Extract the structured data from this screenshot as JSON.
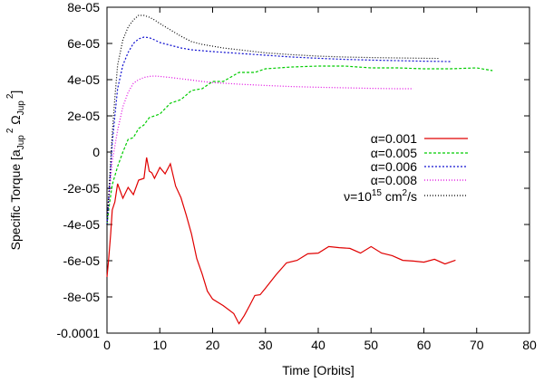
{
  "chart_data": {
    "type": "line",
    "title": "",
    "xlabel": "Time [Orbits]",
    "ylabel_parts": {
      "a": "Specific Torque [a",
      "sub1": "Jup",
      "sup1": "2",
      "omega": " Ω",
      "sub2": "Jup",
      "sup2": "2",
      "close": "]"
    },
    "xlim": [
      0,
      80
    ],
    "ylim": [
      -0.0001,
      8e-05
    ],
    "x_ticks": [
      0,
      10,
      20,
      30,
      40,
      50,
      60,
      70,
      80
    ],
    "x_tick_labels": [
      "0",
      "10",
      "20",
      "30",
      "40",
      "50",
      "60",
      "70",
      "80"
    ],
    "y_ticks": [
      -0.0001,
      -8e-05,
      -6e-05,
      -4e-05,
      -2e-05,
      0,
      2e-05,
      4e-05,
      6e-05,
      8e-05
    ],
    "y_tick_labels": [
      "-0.0001",
      "-8e-05",
      "-6e-05",
      "-4e-05",
      "-2e-05",
      "0",
      "2e-05",
      "4e-05",
      "6e-05",
      "8e-05"
    ],
    "legend_position": "right",
    "series": [
      {
        "name": "α=0.001",
        "label_main": "α=0.001",
        "label_sup": "",
        "label_tail": "",
        "color": "#e00000",
        "dash": "",
        "x": [
          0,
          0.3,
          0.7,
          1,
          1.5,
          2,
          3,
          4,
          5,
          6,
          7,
          7.5,
          8,
          8.5,
          9,
          10,
          11,
          12,
          13,
          14,
          15,
          16,
          17,
          18,
          19,
          20,
          22,
          24,
          25,
          26,
          27,
          28,
          29,
          30,
          32,
          34,
          36,
          38,
          40,
          42,
          44,
          46,
          48,
          50,
          52,
          54,
          56,
          58,
          60,
          62,
          64,
          66
        ],
        "y": [
          -6.9e-05,
          -6e-05,
          -4.5e-05,
          -3.2e-05,
          -2.5e-05,
          -2e-05,
          -2.3e-05,
          -2.2e-05,
          -2.1e-05,
          -1.8e-05,
          -1.2e-05,
          -5.5e-06,
          -8e-06,
          -1.4e-05,
          -1.2e-05,
          -1.1e-05,
          -9.5e-06,
          -9e-06,
          -1.8e-05,
          -2.6e-05,
          -3.4e-05,
          -4.6e-05,
          -5.8e-05,
          -6.8e-05,
          -7.6e-05,
          -8.2e-05,
          -8.4e-05,
          -9e-05,
          -9.4e-05,
          -9.1e-05,
          -8.4e-05,
          -8e-05,
          -7.8e-05,
          -7.6e-05,
          -6.7e-05,
          -6.2e-05,
          -5.9e-05,
          -5.7e-05,
          -5.5e-05,
          -5.3e-05,
          -5.2e-05,
          -5.4e-05,
          -5.5e-05,
          -5.3e-05,
          -5.5e-05,
          -5.8e-05,
          -5.9e-05,
          -6.1e-05,
          -6e-05,
          -6e-05,
          -6.1e-05,
          -6.05e-05
        ]
      },
      {
        "name": "α=0.005",
        "label_main": "α=0.005",
        "label_sup": "",
        "label_tail": "",
        "color": "#00cc00",
        "dash": "3,2",
        "x": [
          0,
          0.5,
          1,
          2,
          3,
          4,
          5,
          6,
          7,
          8,
          10,
          12,
          14,
          16,
          18,
          20,
          22,
          25,
          28,
          30,
          35,
          40,
          45,
          50,
          55,
          60,
          65,
          70,
          73
        ],
        "y": [
          -4e-05,
          -2.8e-05,
          -1.8e-05,
          -8e-06,
          0.0,
          6e-06,
          9e-06,
          1.2e-05,
          1.6e-05,
          1.8e-05,
          2.2e-05,
          2.6e-05,
          3e-05,
          3.3e-05,
          3.6e-05,
          3.8e-05,
          4e-05,
          4.3e-05,
          4.5e-05,
          4.6e-05,
          4.7e-05,
          4.75e-05,
          4.75e-05,
          4.65e-05,
          4.65e-05,
          4.6e-05,
          4.6e-05,
          4.65e-05,
          4.5e-05
        ]
      },
      {
        "name": "α=0.006",
        "label_main": "α=0.006",
        "label_sup": "",
        "label_tail": "",
        "color": "#1010d0",
        "dash": "2,2",
        "x": [
          0,
          0.5,
          1,
          1.5,
          2,
          3,
          4,
          5,
          6,
          7,
          8,
          9,
          10,
          12,
          14,
          16,
          18,
          20,
          25,
          30,
          35,
          40,
          45,
          50,
          55,
          60,
          65
        ],
        "y": [
          -4e-05,
          -1.8e-05,
          5e-06,
          2e-05,
          3.5e-05,
          4.8e-05,
          5.5e-05,
          6e-05,
          6.25e-05,
          6.35e-05,
          6.32e-05,
          6.2e-05,
          6.05e-05,
          5.9e-05,
          5.75e-05,
          5.65e-05,
          5.6e-05,
          5.55e-05,
          5.45e-05,
          5.35e-05,
          5.25e-05,
          5.18e-05,
          5.12e-05,
          5.08e-05,
          5.05e-05,
          5.02e-05,
          5e-05
        ]
      },
      {
        "name": "α=0.008",
        "label_main": "α=0.008",
        "label_sup": "",
        "label_tail": "",
        "color": "#e000e0",
        "dash": "1,2",
        "x": [
          0,
          0.5,
          1,
          2,
          3,
          4,
          5,
          6,
          7,
          8,
          9,
          10,
          11,
          12,
          14,
          16,
          18,
          20,
          25,
          30,
          35,
          40,
          45,
          50,
          55,
          58
        ],
        "y": [
          -4e-05,
          -2.2e-05,
          -5e-06,
          1.2e-05,
          2.5e-05,
          3.3e-05,
          3.8e-05,
          4e-05,
          4.12e-05,
          4.18e-05,
          4.2e-05,
          4.18e-05,
          4.15e-05,
          4.12e-05,
          4.05e-05,
          3.98e-05,
          3.9e-05,
          3.84e-05,
          3.75e-05,
          3.68e-05,
          3.62e-05,
          3.58e-05,
          3.55e-05,
          3.52e-05,
          3.5e-05,
          3.5e-05
        ]
      },
      {
        "name": "ν=10^15 cm^2/s",
        "label_main": "ν=10",
        "label_sup": "15",
        "label_tail": " cm",
        "label_sup2": "2",
        "label_tail2": "/s",
        "color": "#000000",
        "dash": "1,2",
        "x": [
          0,
          0.5,
          1,
          1.5,
          2,
          3,
          4,
          5,
          6,
          7,
          8,
          9,
          10,
          12,
          14,
          16,
          18,
          20,
          22,
          25,
          28,
          30,
          35,
          40,
          45,
          50,
          55,
          60,
          63
        ],
        "y": [
          -4e-05,
          -1.5e-05,
          1e-05,
          3e-05,
          4.8e-05,
          6.2e-05,
          6.9e-05,
          7.3e-05,
          7.55e-05,
          7.55e-05,
          7.45e-05,
          7.3e-05,
          7.1e-05,
          6.75e-05,
          6.4e-05,
          6.1e-05,
          5.95e-05,
          5.85e-05,
          5.75e-05,
          5.65e-05,
          5.55e-05,
          5.48e-05,
          5.38e-05,
          5.3e-05,
          5.25e-05,
          5.22e-05,
          5.2e-05,
          5.18e-05,
          5.17e-05
        ]
      }
    ]
  }
}
